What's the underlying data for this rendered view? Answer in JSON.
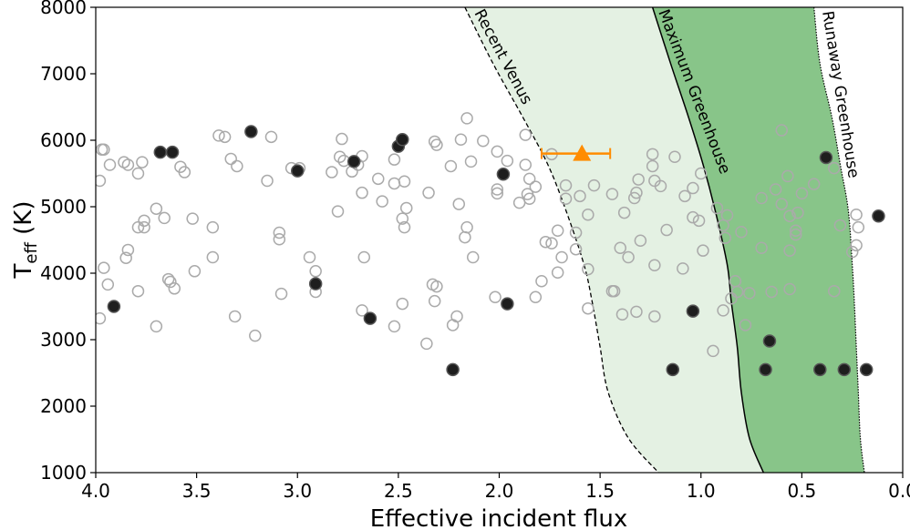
{
  "chart_data": {
    "type": "scatter",
    "title": "",
    "xlabel": "Effective incident flux",
    "ylabel_main": "T",
    "ylabel_sub": "eff",
    "ylabel_unit": " (K)",
    "xlim": [
      4.0,
      0.0
    ],
    "ylim": [
      1000,
      8000
    ],
    "grid": false,
    "xticks": [
      "4.0",
      "3.5",
      "3.0",
      "2.5",
      "2.0",
      "1.5",
      "1.0",
      "0.5",
      "0.0"
    ],
    "xtick_values": [
      4.0,
      3.5,
      3.0,
      2.5,
      2.0,
      1.5,
      1.0,
      0.5,
      0.0
    ],
    "yticks": [
      "1000",
      "2000",
      "3000",
      "4000",
      "5000",
      "6000",
      "7000",
      "8000"
    ],
    "ytick_values": [
      1000,
      2000,
      3000,
      4000,
      5000,
      6000,
      7000,
      8000
    ],
    "colors": {
      "light_zone": "#e4f1e3",
      "dark_zone": "#88c589",
      "open": "#aaaaaa",
      "filled": "#1e1e1e",
      "highlight": "#ff8c00"
    },
    "curves": {
      "recent_venus": {
        "label": "Recent Venus",
        "T": [
          8000,
          7150,
          6330,
          5640,
          4950,
          4130,
          3580,
          2890,
          2210,
          1520,
          1000
        ],
        "flux": [
          2.17,
          2.03,
          1.88,
          1.76,
          1.67,
          1.58,
          1.54,
          1.5,
          1.46,
          1.36,
          1.21
        ]
      },
      "maximum_greenhouse": {
        "label": "Maximum Greenhouse",
        "T": [
          8000,
          7150,
          6330,
          5640,
          4950,
          4130,
          3580,
          2890,
          2210,
          1520,
          1000
        ],
        "flux": [
          1.24,
          1.15,
          1.06,
          0.99,
          0.93,
          0.87,
          0.85,
          0.82,
          0.8,
          0.76,
          0.69
        ]
      },
      "runaway_greenhouse": {
        "label": "Runaway Greenhouse",
        "T": [
          8000,
          7150,
          6330,
          5640,
          4950,
          4130,
          3580,
          2890,
          2210,
          1520,
          1000
        ],
        "flux": [
          0.44,
          0.41,
          0.35,
          0.31,
          0.27,
          0.25,
          0.24,
          0.23,
          0.22,
          0.21,
          0.19
        ]
      }
    },
    "highlight": {
      "flux": 1.59,
      "T": 5800,
      "flux_err_low": 1.45,
      "flux_err_high": 1.79
    },
    "filled_points": [
      [
        3.91,
        3500
      ],
      [
        3.68,
        5820
      ],
      [
        3.62,
        5820
      ],
      [
        3.23,
        6130
      ],
      [
        3.0,
        5540
      ],
      [
        2.91,
        3840
      ],
      [
        2.72,
        5680
      ],
      [
        2.64,
        3320
      ],
      [
        2.5,
        5910
      ],
      [
        2.48,
        6010
      ],
      [
        2.23,
        2550
      ],
      [
        1.98,
        5490
      ],
      [
        1.96,
        3540
      ],
      [
        1.14,
        2550
      ],
      [
        1.04,
        3430
      ],
      [
        0.68,
        2550
      ],
      [
        0.66,
        2980
      ],
      [
        0.41,
        2550
      ],
      [
        0.29,
        2550
      ],
      [
        0.18,
        2550
      ],
      [
        0.38,
        5740
      ],
      [
        0.12,
        4860
      ]
    ],
    "open_points": [
      [
        3.97,
        5860
      ],
      [
        3.96,
        5860
      ],
      [
        3.93,
        5630
      ],
      [
        3.86,
        5670
      ],
      [
        3.84,
        5630
      ],
      [
        3.77,
        5670
      ],
      [
        3.79,
        5500
      ],
      [
        3.98,
        5390
      ],
      [
        3.58,
        5600
      ],
      [
        3.56,
        5520
      ],
      [
        3.39,
        6070
      ],
      [
        3.36,
        6050
      ],
      [
        3.33,
        5720
      ],
      [
        3.3,
        5610
      ],
      [
        3.13,
        6050
      ],
      [
        3.15,
        5390
      ],
      [
        3.03,
        5580
      ],
      [
        2.99,
        5580
      ],
      [
        2.78,
        6020
      ],
      [
        2.79,
        5750
      ],
      [
        2.77,
        5690
      ],
      [
        2.73,
        5530
      ],
      [
        2.7,
        5630
      ],
      [
        2.68,
        5760
      ],
      [
        2.83,
        5520
      ],
      [
        2.6,
        5420
      ],
      [
        2.52,
        5710
      ],
      [
        2.52,
        5350
      ],
      [
        2.47,
        5380
      ],
      [
        2.68,
        5210
      ],
      [
        2.58,
        5080
      ],
      [
        2.46,
        4980
      ],
      [
        2.48,
        4820
      ],
      [
        2.47,
        4690
      ],
      [
        2.8,
        4930
      ],
      [
        2.35,
        5210
      ],
      [
        2.32,
        5980
      ],
      [
        2.31,
        5930
      ],
      [
        2.24,
        5610
      ],
      [
        2.19,
        6010
      ],
      [
        2.16,
        6330
      ],
      [
        2.14,
        5680
      ],
      [
        2.08,
        5990
      ],
      [
        2.2,
        5040
      ],
      [
        2.16,
        4690
      ],
      [
        2.17,
        4540
      ],
      [
        2.13,
        4240
      ],
      [
        3.7,
        4970
      ],
      [
        3.76,
        4790
      ],
      [
        3.79,
        4690
      ],
      [
        3.76,
        4690
      ],
      [
        3.66,
        4830
      ],
      [
        3.52,
        4820
      ],
      [
        3.42,
        4690
      ],
      [
        3.09,
        4610
      ],
      [
        3.09,
        4510
      ],
      [
        2.94,
        4240
      ],
      [
        2.67,
        4240
      ],
      [
        2.91,
        4030
      ],
      [
        2.91,
        3720
      ],
      [
        3.08,
        3690
      ],
      [
        3.51,
        4030
      ],
      [
        3.42,
        4240
      ],
      [
        3.84,
        4350
      ],
      [
        3.85,
        4230
      ],
      [
        3.96,
        4080
      ],
      [
        3.94,
        3830
      ],
      [
        3.79,
        3730
      ],
      [
        3.64,
        3910
      ],
      [
        3.63,
        3870
      ],
      [
        3.61,
        3770
      ],
      [
        3.98,
        3320
      ],
      [
        3.7,
        3200
      ],
      [
        3.31,
        3350
      ],
      [
        3.21,
        3060
      ],
      [
        2.68,
        3440
      ],
      [
        2.48,
        3540
      ],
      [
        2.52,
        3200
      ],
      [
        2.32,
        3580
      ],
      [
        2.33,
        3830
      ],
      [
        2.31,
        3800
      ],
      [
        2.21,
        3350
      ],
      [
        2.23,
        3220
      ],
      [
        2.36,
        2940
      ],
      [
        1.87,
        6080
      ],
      [
        2.01,
        5830
      ],
      [
        1.96,
        5690
      ],
      [
        1.87,
        5630
      ],
      [
        1.74,
        5790
      ],
      [
        1.85,
        5420
      ],
      [
        1.82,
        5300
      ],
      [
        2.01,
        5260
      ],
      [
        2.01,
        5200
      ],
      [
        1.86,
        5190
      ],
      [
        1.85,
        5120
      ],
      [
        1.9,
        5060
      ],
      [
        1.67,
        5320
      ],
      [
        1.67,
        5120
      ],
      [
        1.6,
        5160
      ],
      [
        1.53,
        5320
      ],
      [
        1.56,
        4880
      ],
      [
        1.44,
        5190
      ],
      [
        1.33,
        5130
      ],
      [
        1.32,
        5210
      ],
      [
        1.31,
        5410
      ],
      [
        1.38,
        4910
      ],
      [
        1.24,
        5790
      ],
      [
        1.24,
        5610
      ],
      [
        1.13,
        5750
      ],
      [
        1.23,
        5390
      ],
      [
        1.2,
        5310
      ],
      [
        1.04,
        5280
      ],
      [
        1.08,
        5160
      ],
      [
        1.04,
        4840
      ],
      [
        1.01,
        4790
      ],
      [
        1.17,
        4650
      ],
      [
        1.3,
        4490
      ],
      [
        1.4,
        4380
      ],
      [
        1.36,
        4240
      ],
      [
        1.23,
        4120
      ],
      [
        1.09,
        4070
      ],
      [
        0.99,
        4340
      ],
      [
        1.71,
        4640
      ],
      [
        1.62,
        4610
      ],
      [
        1.77,
        4470
      ],
      [
        1.74,
        4450
      ],
      [
        1.69,
        4240
      ],
      [
        1.62,
        4360
      ],
      [
        1.71,
        4010
      ],
      [
        1.79,
        3880
      ],
      [
        1.82,
        3640
      ],
      [
        2.02,
        3640
      ],
      [
        1.56,
        4060
      ],
      [
        1.44,
        3730
      ],
      [
        1.43,
        3730
      ],
      [
        1.56,
        3470
      ],
      [
        1.39,
        3380
      ],
      [
        1.32,
        3420
      ],
      [
        1.23,
        3350
      ],
      [
        0.89,
        3440
      ],
      [
        0.94,
        2830
      ],
      [
        0.78,
        3220
      ],
      [
        1.0,
        5500
      ],
      [
        0.92,
        4980
      ],
      [
        0.87,
        4870
      ],
      [
        0.89,
        4720
      ],
      [
        0.88,
        4530
      ],
      [
        0.8,
        4620
      ],
      [
        0.83,
        3880
      ],
      [
        0.82,
        3720
      ],
      [
        0.85,
        3620
      ],
      [
        0.76,
        3700
      ],
      [
        0.65,
        3720
      ],
      [
        0.56,
        3760
      ],
      [
        0.34,
        3730
      ],
      [
        0.7,
        4380
      ],
      [
        0.56,
        4340
      ],
      [
        0.53,
        4640
      ],
      [
        0.53,
        4580
      ],
      [
        0.56,
        4860
      ],
      [
        0.52,
        4910
      ],
      [
        0.6,
        5040
      ],
      [
        0.7,
        5130
      ],
      [
        0.63,
        5260
      ],
      [
        0.57,
        5460
      ],
      [
        0.5,
        5200
      ],
      [
        0.44,
        5340
      ],
      [
        0.6,
        6150
      ],
      [
        0.34,
        5580
      ],
      [
        0.31,
        4720
      ],
      [
        0.23,
        4880
      ],
      [
        0.22,
        4690
      ],
      [
        0.23,
        4420
      ],
      [
        0.25,
        4320
      ]
    ]
  }
}
